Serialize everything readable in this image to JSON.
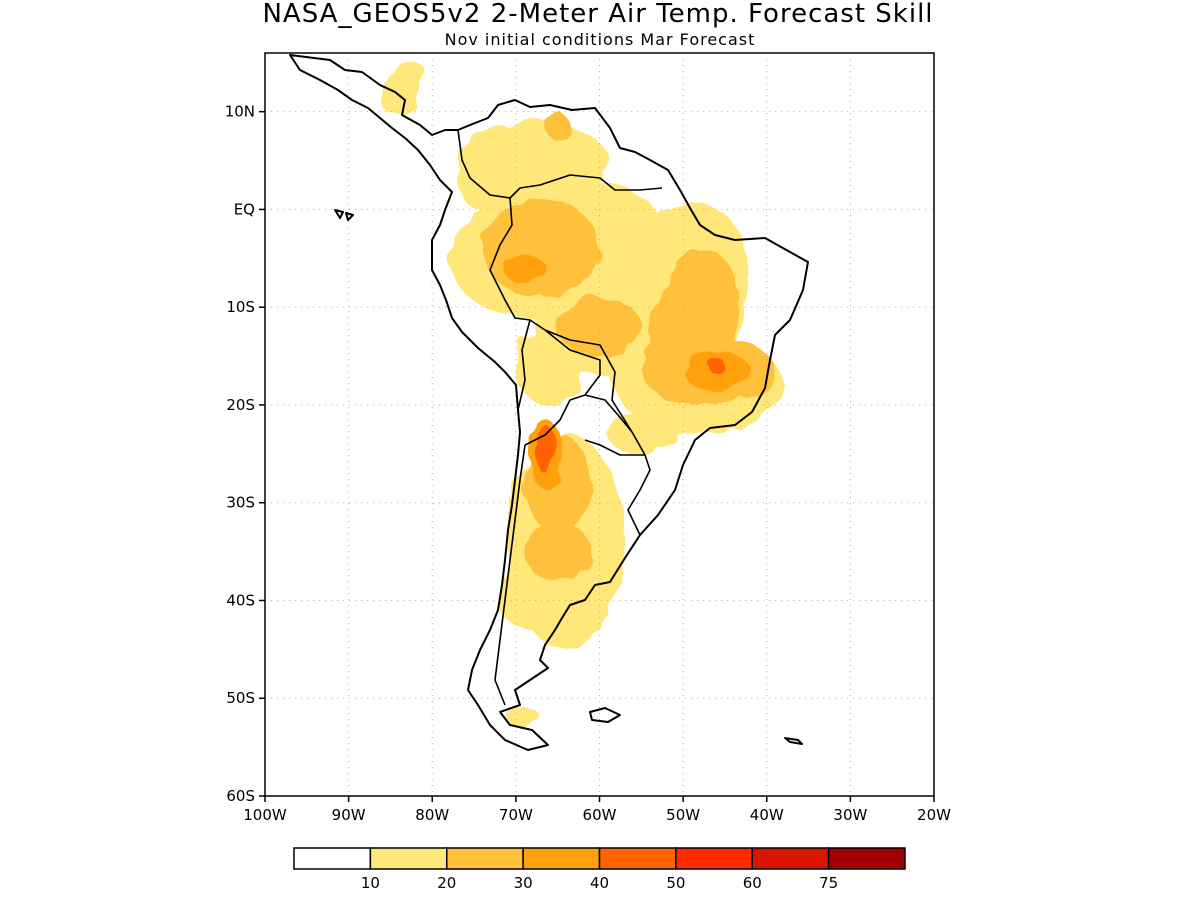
{
  "title": "NASA_GEOS5v2 2-Meter Air Temp. Forecast Skill",
  "subtitle": "Nov initial conditions  Mar Forecast",
  "map": {
    "lon_range": [
      -100,
      -20
    ],
    "lat_range": [
      -60,
      16
    ],
    "x_ticks": [
      "100W",
      "90W",
      "80W",
      "70W",
      "60W",
      "50W",
      "40W",
      "30W",
      "20W"
    ],
    "x_tick_values": [
      -100,
      -90,
      -80,
      -70,
      -60,
      -50,
      -40,
      -30,
      -20
    ],
    "y_ticks": [
      "10N",
      "EQ",
      "10S",
      "20S",
      "30S",
      "40S",
      "50S",
      "60S"
    ],
    "y_tick_values": [
      10,
      0,
      -10,
      -20,
      -30,
      -40,
      -50,
      -60
    ],
    "grid": "dotted"
  },
  "colorbar": {
    "colors": [
      "#ffffff",
      "#ffe77a",
      "#ffc13a",
      "#ffa00f",
      "#ff6400",
      "#ff2a00",
      "#d81600",
      "#a00000"
    ],
    "labels": [
      "10",
      "20",
      "30",
      "40",
      "50",
      "60",
      "75"
    ]
  },
  "skill_regions": [
    {
      "level": 1,
      "lon": -68,
      "lat": 5,
      "rx": 9,
      "ry": 4,
      "rot": 0
    },
    {
      "level": 1,
      "lon": -74,
      "lat": 3,
      "rx": 3,
      "ry": 3,
      "rot": 0
    },
    {
      "level": 1,
      "lon": -83.5,
      "lat": 12.5,
      "rx": 2,
      "ry": 3,
      "rot": 30
    },
    {
      "level": 2,
      "lon": -65,
      "lat": 8.5,
      "rx": 1.5,
      "ry": 1.3,
      "rot": 0
    },
    {
      "level": 1,
      "lon": -65,
      "lat": -4,
      "rx": 13,
      "ry": 7,
      "rot": -10
    },
    {
      "level": 2,
      "lon": -67,
      "lat": -4,
      "rx": 7,
      "ry": 5,
      "rot": 0
    },
    {
      "level": 3,
      "lon": -69,
      "lat": -6,
      "rx": 2.5,
      "ry": 1.5,
      "rot": 0
    },
    {
      "level": 1,
      "lon": -51,
      "lat": -10,
      "rx": 8,
      "ry": 11,
      "rot": 20
    },
    {
      "level": 2,
      "lon": -49,
      "lat": -12,
      "rx": 5,
      "ry": 8,
      "rot": 15
    },
    {
      "level": 1,
      "lon": -59,
      "lat": -12,
      "rx": 9,
      "ry": 5,
      "rot": 0
    },
    {
      "level": 2,
      "lon": -60,
      "lat": -12,
      "rx": 5,
      "ry": 3,
      "rot": 0
    },
    {
      "level": 1,
      "lon": -48,
      "lat": -18,
      "rx": 10,
      "ry": 5,
      "rot": 0
    },
    {
      "level": 2,
      "lon": -47,
      "lat": -16.5,
      "rx": 8,
      "ry": 3.5,
      "rot": 0
    },
    {
      "level": 3,
      "lon": -46,
      "lat": -16.5,
      "rx": 4,
      "ry": 2,
      "rot": 0
    },
    {
      "level": 4,
      "lon": -46,
      "lat": -16,
      "rx": 1,
      "ry": 0.8,
      "rot": 0
    },
    {
      "level": 1,
      "lon": -66,
      "lat": -16,
      "rx": 4,
      "ry": 4,
      "rot": 0
    },
    {
      "level": 1,
      "lon": -64,
      "lat": -34,
      "rx": 7,
      "ry": 11,
      "rot": 0
    },
    {
      "level": 2,
      "lon": -65,
      "lat": -28,
      "rx": 4,
      "ry": 5,
      "rot": 0
    },
    {
      "level": 2,
      "lon": -65,
      "lat": -35,
      "rx": 4,
      "ry": 3,
      "rot": 0
    },
    {
      "level": 3,
      "lon": -66.5,
      "lat": -25,
      "rx": 2,
      "ry": 3.5,
      "rot": 0
    },
    {
      "level": 4,
      "lon": -66.5,
      "lat": -24.5,
      "rx": 1.2,
      "ry": 2.5,
      "rot": 0
    },
    {
      "level": 1,
      "lon": -55,
      "lat": -23,
      "rx": 4,
      "ry": 2,
      "rot": 0
    },
    {
      "level": 1,
      "lon": -68,
      "lat": -40,
      "rx": 4,
      "ry": 3,
      "rot": 0
    },
    {
      "level": 1,
      "lon": -69,
      "lat": -52,
      "rx": 2,
      "ry": 1,
      "rot": 0
    }
  ]
}
